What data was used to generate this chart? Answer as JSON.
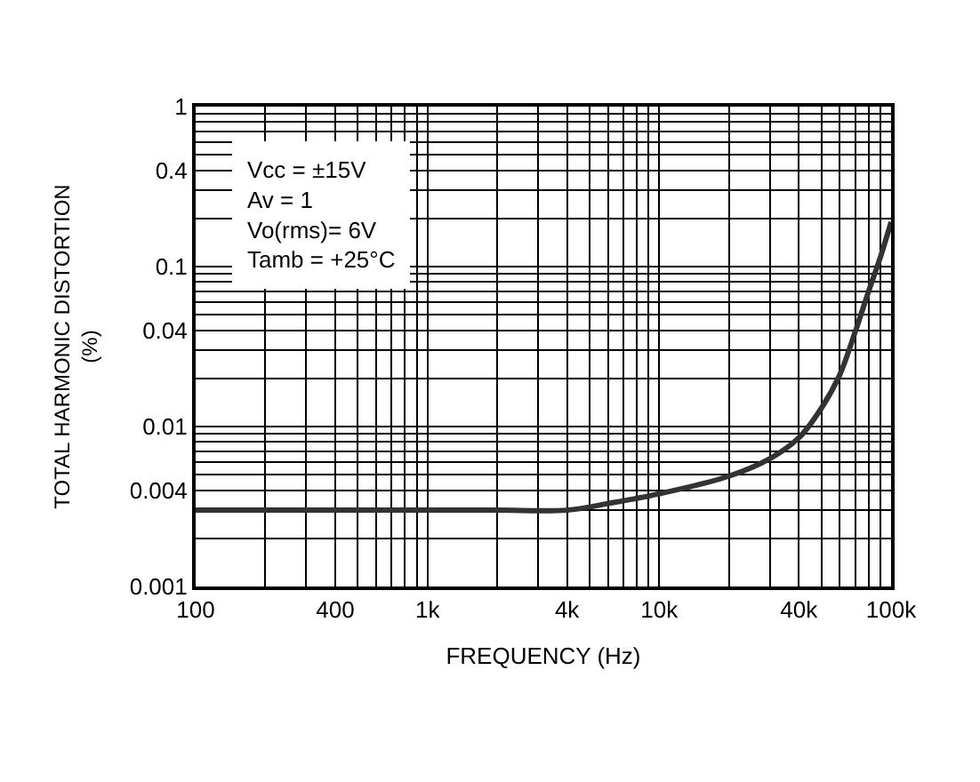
{
  "chart_data": {
    "type": "line",
    "xlabel": "FREQUENCY (Hz)",
    "ylabel": "TOTAL HARMONIC DISTORTION\n(%)",
    "x": [
      100,
      300,
      1000,
      2000,
      4000,
      6000,
      10000,
      20000,
      30000,
      40000,
      50000,
      60000,
      70000,
      80000,
      90000,
      100000
    ],
    "series": [
      {
        "color": "#333333",
        "values": [
          0.003,
          0.003,
          0.003,
          0.003,
          0.003,
          0.0033,
          0.0038,
          0.0049,
          0.0063,
          0.0085,
          0.013,
          0.021,
          0.039,
          0.07,
          0.115,
          0.19
        ]
      }
    ],
    "log": "xy",
    "xlim": [
      100,
      100000
    ],
    "ylim": [
      0.001,
      1
    ],
    "grid": true,
    "marker": "none",
    "line_style": "solid",
    "xticks": [
      100,
      {
        "value": 200,
        "label": null
      },
      {
        "value": 300,
        "label": null
      },
      400,
      {
        "value": 500,
        "label": null
      },
      {
        "value": 600,
        "label": null
      },
      {
        "value": 700,
        "label": null
      },
      {
        "value": 800,
        "label": null
      },
      {
        "value": 900,
        "label": null
      },
      {
        "value": 1000,
        "label": "1k"
      },
      {
        "value": 2000,
        "label": null
      },
      {
        "value": 3000,
        "label": null
      },
      {
        "value": 4000,
        "label": "4k"
      },
      {
        "value": 5000,
        "label": null
      },
      {
        "value": 6000,
        "label": null
      },
      {
        "value": 7000,
        "label": null
      },
      {
        "value": 8000,
        "label": null
      },
      {
        "value": 9000,
        "label": null
      },
      {
        "value": 10000,
        "label": "10k"
      },
      {
        "value": 20000,
        "label": null
      },
      {
        "value": 30000,
        "label": null
      },
      {
        "value": 40000,
        "label": "40k"
      },
      {
        "value": 50000,
        "label": null
      },
      {
        "value": 60000,
        "label": null
      },
      {
        "value": 70000,
        "label": null
      },
      {
        "value": 80000,
        "label": null
      },
      {
        "value": 90000,
        "label": null
      },
      {
        "value": 100000,
        "label": "100k"
      }
    ],
    "yticks": [
      0.001,
      {
        "value": 0.002,
        "label": null
      },
      {
        "value": 0.003,
        "label": null
      },
      0.004,
      {
        "value": 0.005,
        "label": null
      },
      {
        "value": 0.006,
        "label": null
      },
      {
        "value": 0.007,
        "label": null
      },
      {
        "value": 0.008,
        "label": null
      },
      {
        "value": 0.009,
        "label": null
      },
      0.01,
      {
        "value": 0.02,
        "label": null
      },
      {
        "value": 0.03,
        "label": null
      },
      0.04,
      {
        "value": 0.05,
        "label": null
      },
      {
        "value": 0.06,
        "label": null
      },
      {
        "value": 0.07,
        "label": null
      },
      {
        "value": 0.08,
        "label": null
      },
      {
        "value": 0.09,
        "label": null
      },
      0.1,
      {
        "value": 0.2,
        "label": null
      },
      {
        "value": 0.3,
        "label": null
      },
      0.4,
      {
        "value": 0.5,
        "label": null
      },
      {
        "value": 0.6,
        "label": null
      },
      {
        "value": 0.7,
        "label": null
      },
      {
        "value": 0.8,
        "label": null
      },
      {
        "value": 0.9,
        "label": null
      },
      1
    ],
    "annotations": [
      "Vcc = ±15V\nAv = 1\nVo(rms)= 6V\nTamb = +25°C"
    ]
  }
}
